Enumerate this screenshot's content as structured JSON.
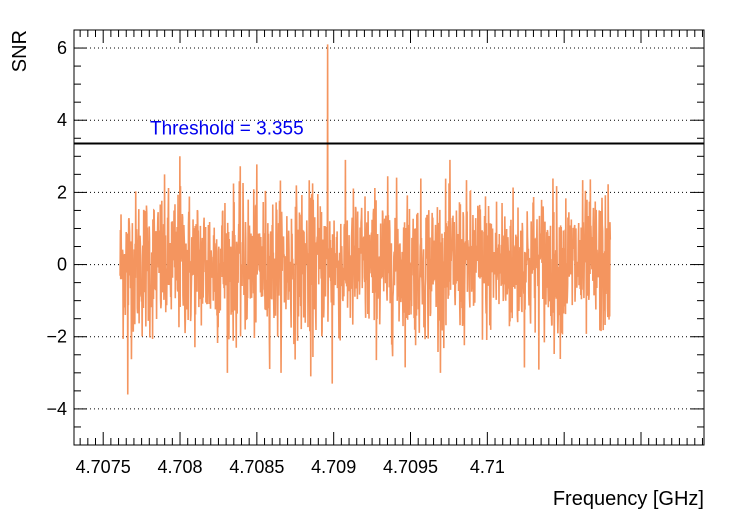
{
  "chart_data": {
    "type": "line",
    "xlabel": "Frequency [GHz]",
    "ylabel": "SNR",
    "xlim": [
      4.70731,
      4.71141
    ],
    "ylim": [
      -5,
      6.5
    ],
    "x_ticks": [
      4.7075,
      4.708,
      4.7085,
      4.709,
      4.7095,
      4.71
    ],
    "x_tick_labels": [
      "4.7075",
      "4.708",
      "4.7085",
      "4.709",
      "4.7095",
      "4.71"
    ],
    "y_ticks": [
      -4,
      -2,
      0,
      2,
      4,
      6
    ],
    "y_tick_labels": [
      "−4",
      "−2",
      "0",
      "2",
      "4",
      "6"
    ],
    "grid": "horizontal dotted",
    "series": [
      {
        "color": "#f4955f",
        "x_start": 4.70761,
        "x_end": 4.7108,
        "points": 1600,
        "noise_sigma": 1.0,
        "peak": {
          "x": 4.70896,
          "y": 6.1
        },
        "notable_points": [
          {
            "x": 4.70766,
            "y": -3.6
          },
          {
            "x": 4.70899,
            "y": -3.3
          },
          {
            "x": 4.70885,
            "y": -3.1
          },
          {
            "x": 4.708,
            "y": 3.0
          }
        ]
      }
    ],
    "threshold": {
      "value": 3.355,
      "label": "Threshold = 3.355",
      "color": "#000000",
      "label_color": "#0000ee"
    }
  }
}
